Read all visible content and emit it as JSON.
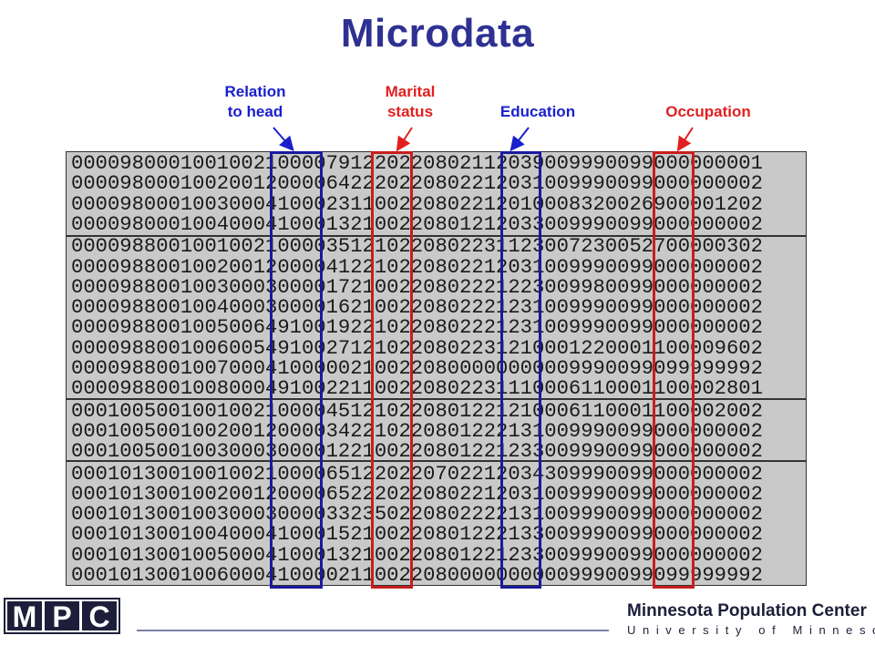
{
  "title": "Microdata",
  "labels": {
    "relation": "Relation\nto head",
    "marital": "Marital\nstatus",
    "education": "Education",
    "occupation": "Occupation"
  },
  "colors": {
    "title": "#2e3192",
    "blue": "#1a1fcc",
    "red": "#e02020",
    "box_blue": "#1a1a9e",
    "box_red": "#c81e1e"
  },
  "records": [
    "000098000100100210000791220220802112039009990099000000001",
    "000098000100200120000642220220802212031009990099000000002",
    "000098000100300041000231100220802212010008320026900001202",
    "000098000100400041000132100220801212033009990099000000002",
    "000098800100100210000351210220802231123007230052700000302",
    "000098800100200120000412210220802212031009990099000000002",
    "000098800100300030000172100220802221223009980099000000002",
    "000098800100400030000162100220802221231009990099000000002",
    "000098800100500649100192210220802221231009990099000000002",
    "000098800100600549100271210220802231210001220001100009602",
    "000098800100700041000002100220800000000009990099099999992",
    "000098800100800049100221100220802231110006110001100002801",
    "000100500100100210000451210220801221210006110001100002002",
    "000100500100200120000342210220801222131009990099000000002",
    "000100500100300030000122100220801221233009990099000000002",
    "000101300100100210000651220220702212034309990099000000002",
    "000101300100200120000652220220802212031009990099000000002",
    "000101300100300030000332350220802222131009990099000000002",
    "000101300100400041000152100220801222133009990099000000002",
    "000101300100500041000132100220801221233009990099000000002",
    "000101300100600041000021100220800000000009990099099999992"
  ],
  "logo": {
    "letters": "MPC",
    "center_name": "Minnesota Population Center",
    "center_sub": "University of Minnesota"
  }
}
